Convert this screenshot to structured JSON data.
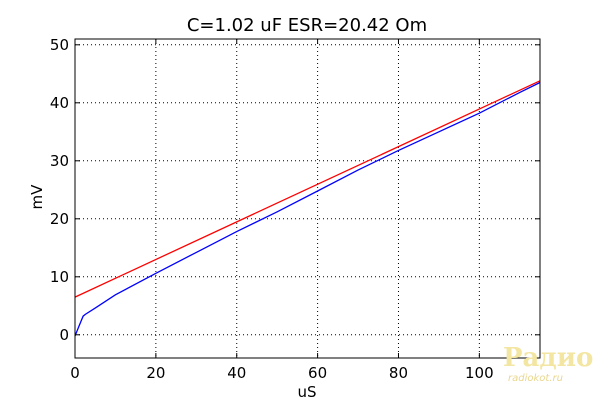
{
  "chart_data": {
    "type": "line",
    "title": "C=1.02 uF ESR=20.42 Om",
    "xlabel": "uS",
    "ylabel": "mV",
    "xlim": [
      0,
      115
    ],
    "ylim": [
      -4,
      51
    ],
    "xticks": [
      0,
      20,
      40,
      60,
      80,
      100
    ],
    "yticks": [
      0,
      10,
      20,
      30,
      40,
      50
    ],
    "grid": true,
    "series": [
      {
        "color": "#0000ff",
        "x": [
          0,
          1,
          2,
          2.5,
          5,
          10,
          20,
          30,
          40,
          50,
          60,
          70,
          80,
          90,
          100,
          110,
          115
        ],
        "y": [
          -0.2,
          1.5,
          3.2,
          3.5,
          4.6,
          6.9,
          10.6,
          14.2,
          17.8,
          21.2,
          24.8,
          28.4,
          31.8,
          35.0,
          38.2,
          41.8,
          43.5
        ]
      },
      {
        "color": "#ff0000",
        "x": [
          0,
          115
        ],
        "y": [
          6.5,
          43.8
        ]
      }
    ]
  },
  "watermark": {
    "logo_text": "Радио КОТ",
    "site_text": "radiokot.ru"
  }
}
